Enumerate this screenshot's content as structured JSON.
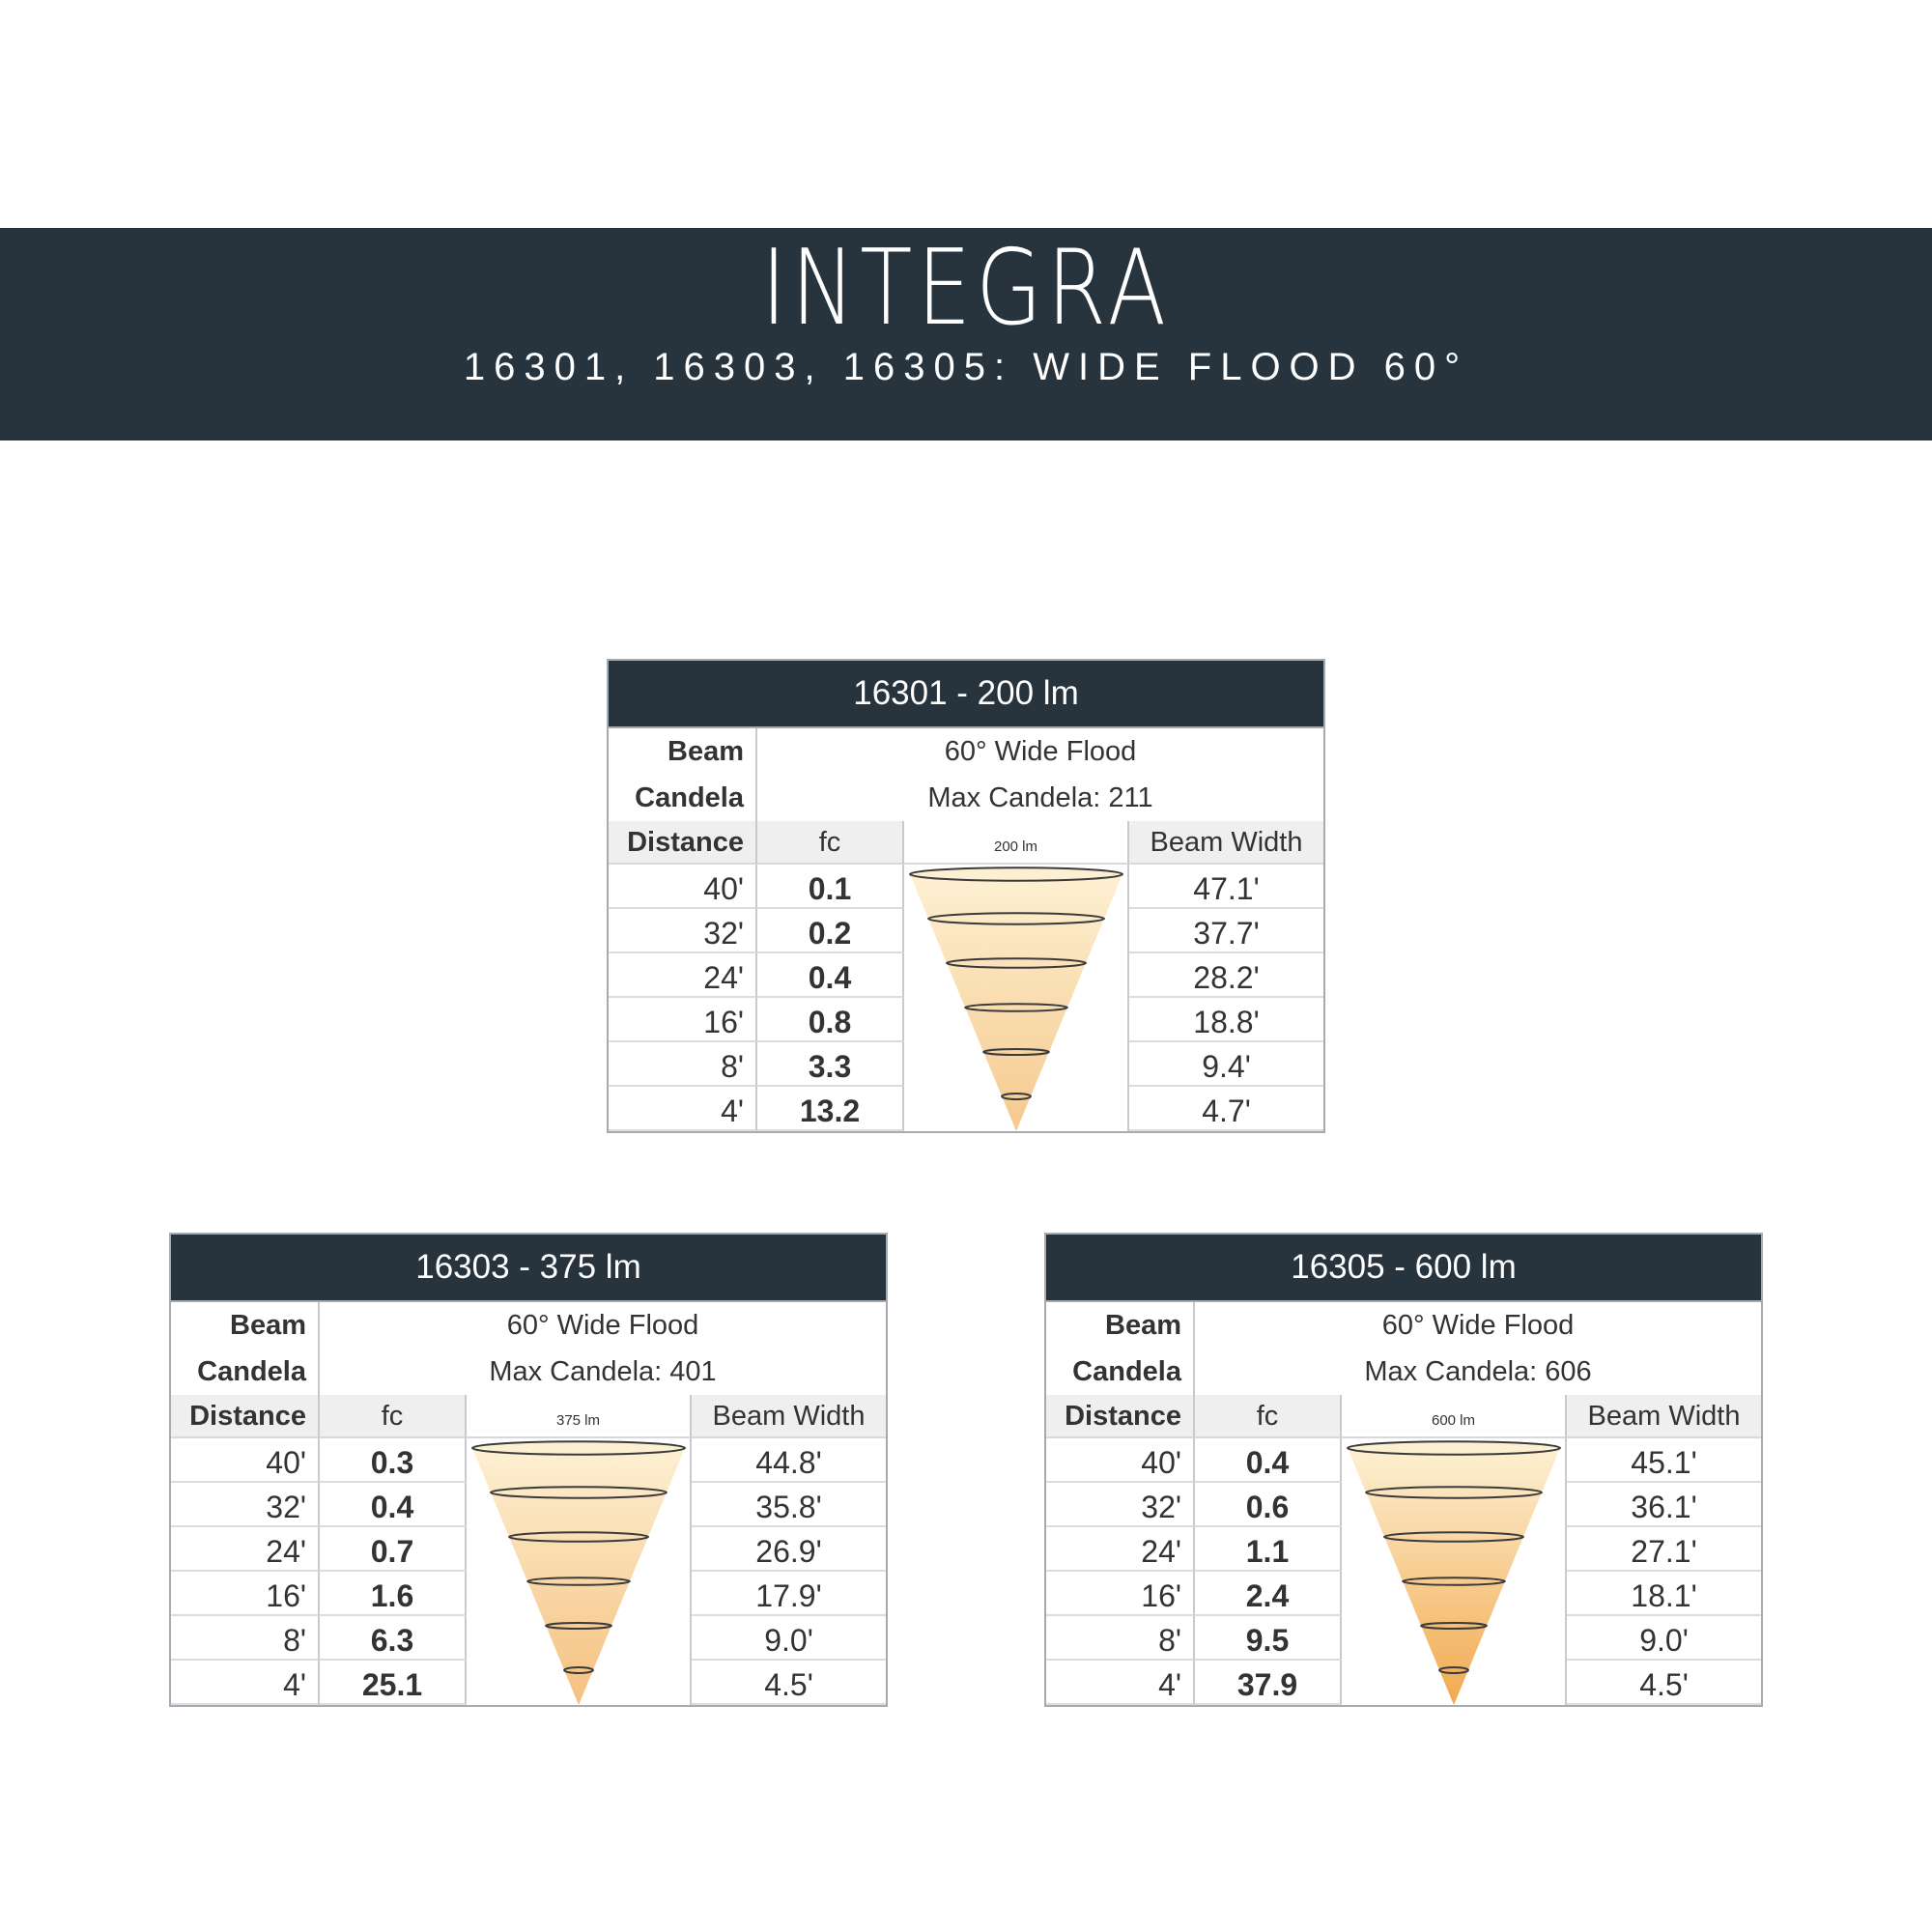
{
  "banner": {
    "title": "INTEGRA",
    "subtitle": "16301, 16303, 16305: WIDE FLOOD 60°"
  },
  "colors": {
    "banner_bg": "#27333d",
    "cone_top": "#fdf0d2",
    "cone_bottom_200": "#f6c98e",
    "cone_bottom_375": "#f5c07f",
    "cone_bottom_600": "#f2a94f",
    "grid_border": "#a7aab0",
    "header_row_bg": "#efeff0"
  },
  "labels": {
    "beam": "Beam",
    "candela": "Candela",
    "distance": "Distance",
    "fc": "fc",
    "beam_width": "Beam Width"
  },
  "tables": [
    {
      "header": "16301 - 200 lm",
      "beam": "60° Wide Flood",
      "candela": "Max Candela: 211",
      "cone_label": "200 lm",
      "rows": [
        {
          "distance": "40'",
          "fc": "0.1",
          "beam_width": "47.1'"
        },
        {
          "distance": "32'",
          "fc": "0.2",
          "beam_width": "37.7'"
        },
        {
          "distance": "24'",
          "fc": "0.4",
          "beam_width": "28.2'"
        },
        {
          "distance": "16'",
          "fc": "0.8",
          "beam_width": "18.8'"
        },
        {
          "distance": "8'",
          "fc": "3.3",
          "beam_width": "9.4'"
        },
        {
          "distance": "4'",
          "fc": "13.2",
          "beam_width": "4.7'"
        }
      ]
    },
    {
      "header": "16303 - 375 lm",
      "beam": "60° Wide Flood",
      "candela": "Max Candela: 401",
      "cone_label": "375 lm",
      "rows": [
        {
          "distance": "40'",
          "fc": "0.3",
          "beam_width": "44.8'"
        },
        {
          "distance": "32'",
          "fc": "0.4",
          "beam_width": "35.8'"
        },
        {
          "distance": "24'",
          "fc": "0.7",
          "beam_width": "26.9'"
        },
        {
          "distance": "16'",
          "fc": "1.6",
          "beam_width": "17.9'"
        },
        {
          "distance": "8'",
          "fc": "6.3",
          "beam_width": "9.0'"
        },
        {
          "distance": "4'",
          "fc": "25.1",
          "beam_width": "4.5'"
        }
      ]
    },
    {
      "header": "16305 - 600 lm",
      "beam": "60° Wide Flood",
      "candela": "Max Candela: 606",
      "cone_label": "600 lm",
      "rows": [
        {
          "distance": "40'",
          "fc": "0.4",
          "beam_width": "45.1'"
        },
        {
          "distance": "32'",
          "fc": "0.6",
          "beam_width": "36.1'"
        },
        {
          "distance": "24'",
          "fc": "1.1",
          "beam_width": "27.1'"
        },
        {
          "distance": "16'",
          "fc": "2.4",
          "beam_width": "18.1'"
        },
        {
          "distance": "8'",
          "fc": "9.5",
          "beam_width": "9.0'"
        },
        {
          "distance": "4'",
          "fc": "37.9",
          "beam_width": "4.5'"
        }
      ]
    }
  ]
}
